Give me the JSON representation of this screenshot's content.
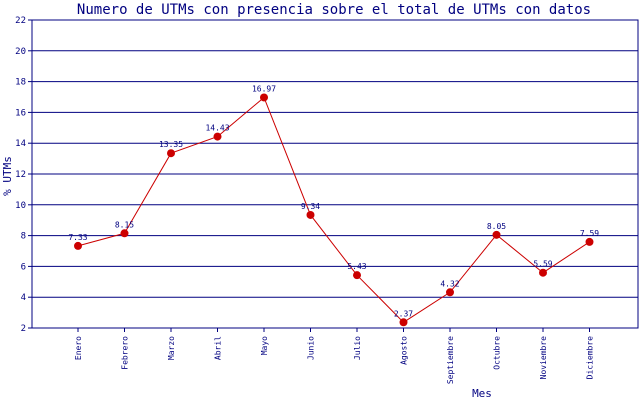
{
  "chart_data": {
    "type": "line",
    "title": "Numero de UTMs con presencia sobre el total de UTMs con datos",
    "xlabel": "Mes",
    "ylabel": "% UTMs",
    "categories": [
      "Enero",
      "Febrero",
      "Marzo",
      "Abril",
      "Mayo",
      "Junio",
      "Julio",
      "Agosto",
      "Septiembre",
      "Octubre",
      "Noviembre",
      "Diciembre"
    ],
    "values": [
      7.33,
      8.15,
      13.35,
      14.43,
      16.97,
      9.34,
      5.43,
      2.37,
      4.32,
      8.05,
      5.59,
      7.59
    ],
    "value_labels": [
      "7.33",
      "8.15",
      "13.35",
      "14.43",
      "16.97",
      "9.34",
      "5.43",
      "2.37",
      "4.32",
      "8.05",
      "5.59",
      "7.59"
    ],
    "ylim": [
      2,
      22
    ],
    "yticks": [
      "2",
      "4",
      "6",
      "8",
      "10",
      "12",
      "14",
      "16",
      "18",
      "20",
      "22"
    ],
    "grid": true,
    "colors": {
      "text": "#000080",
      "grid": "#000080",
      "line": "#cc0000",
      "marker": "#cc0000"
    }
  }
}
